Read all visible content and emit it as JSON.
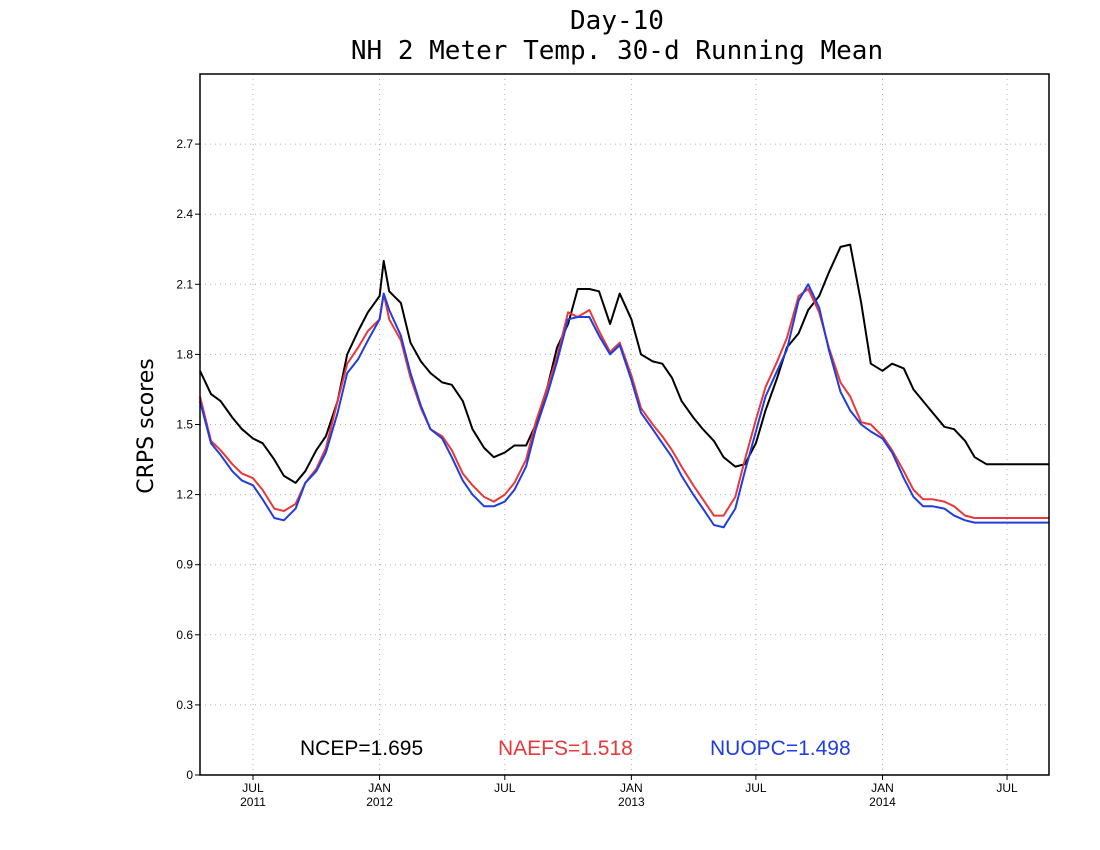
{
  "chart_data": {
    "type": "line",
    "title": "Day-10",
    "subtitle": "NH 2 Meter Temp. 30-d Running Mean",
    "ylabel": "CRPS scores",
    "xlabel": "",
    "ylim": [
      0,
      3.0
    ],
    "xlim": [
      "2011-04-15",
      "2014-08-31"
    ],
    "yticks": [
      "0",
      "0.3",
      "0.6",
      "0.9",
      "1.2",
      "1.5",
      "1.8",
      "2.1",
      "2.4",
      "2.7"
    ],
    "xticks": [
      {
        "date": "2011-07-01",
        "month": "JUL",
        "year": "2011"
      },
      {
        "date": "2012-01-01",
        "month": "JAN",
        "year": "2012"
      },
      {
        "date": "2012-07-01",
        "month": "JUL",
        "year": ""
      },
      {
        "date": "2013-01-01",
        "month": "JAN",
        "year": "2013"
      },
      {
        "date": "2013-07-01",
        "month": "JUL",
        "year": ""
      },
      {
        "date": "2014-01-01",
        "month": "JAN",
        "year": "2014"
      },
      {
        "date": "2014-07-01",
        "month": "JUL",
        "year": ""
      }
    ],
    "grid": true,
    "legend_position": "bottom-inside",
    "series": [
      {
        "name": "NCEP",
        "legend": "NCEP=1.695",
        "color": "#000000",
        "x": [
          "2011-04-15",
          "2011-05-01",
          "2011-05-15",
          "2011-06-01",
          "2011-06-15",
          "2011-07-01",
          "2011-07-15",
          "2011-08-01",
          "2011-08-15",
          "2011-09-01",
          "2011-09-15",
          "2011-10-01",
          "2011-10-15",
          "2011-11-01",
          "2011-11-15",
          "2011-12-01",
          "2011-12-15",
          "2012-01-01",
          "2012-01-07",
          "2012-01-15",
          "2012-02-01",
          "2012-02-15",
          "2012-03-01",
          "2012-03-15",
          "2012-04-01",
          "2012-04-15",
          "2012-05-01",
          "2012-05-15",
          "2012-06-01",
          "2012-06-15",
          "2012-07-01",
          "2012-07-15",
          "2012-08-01",
          "2012-08-15",
          "2012-09-01",
          "2012-09-15",
          "2012-10-01",
          "2012-10-15",
          "2012-11-01",
          "2012-11-15",
          "2012-12-01",
          "2012-12-15",
          "2013-01-01",
          "2013-01-15",
          "2013-02-01",
          "2013-02-15",
          "2013-03-01",
          "2013-03-15",
          "2013-04-01",
          "2013-04-15",
          "2013-05-01",
          "2013-05-15",
          "2013-06-01",
          "2013-06-15",
          "2013-07-01",
          "2013-07-15",
          "2013-08-01",
          "2013-08-15",
          "2013-09-01",
          "2013-09-15",
          "2013-10-01",
          "2013-10-15",
          "2013-11-01",
          "2013-11-15",
          "2013-12-01",
          "2013-12-15",
          "2014-01-01",
          "2014-01-15",
          "2014-02-01",
          "2014-02-15",
          "2014-03-01",
          "2014-03-15",
          "2014-04-01",
          "2014-04-15",
          "2014-05-01",
          "2014-05-15",
          "2014-06-01",
          "2014-06-15",
          "2014-07-01",
          "2014-07-15",
          "2014-08-01",
          "2014-08-15",
          "2014-08-31"
        ],
        "values": [
          1.73,
          1.63,
          1.6,
          1.53,
          1.48,
          1.44,
          1.42,
          1.35,
          1.28,
          1.25,
          1.3,
          1.39,
          1.45,
          1.6,
          1.8,
          1.9,
          1.98,
          2.05,
          2.2,
          2.07,
          2.02,
          1.85,
          1.77,
          1.72,
          1.68,
          1.67,
          1.6,
          1.48,
          1.4,
          1.36,
          1.38,
          1.41,
          1.41,
          1.5,
          1.66,
          1.83,
          1.93,
          2.08,
          2.08,
          2.07,
          1.93,
          2.06,
          1.95,
          1.8,
          1.77,
          1.76,
          1.7,
          1.6,
          1.53,
          1.48,
          1.43,
          1.36,
          1.32,
          1.33,
          1.42,
          1.56,
          1.7,
          1.83,
          1.89,
          1.99,
          2.05,
          2.15,
          2.26,
          2.27,
          2.02,
          1.76,
          1.73,
          1.76,
          1.74,
          1.65,
          1.6,
          1.55,
          1.49,
          1.48,
          1.43,
          1.36,
          1.33,
          1.33,
          1.33,
          1.33,
          1.33,
          1.33,
          1.33
        ]
      },
      {
        "name": "NAEFS",
        "legend": "NAEFS=1.518",
        "color": "#e8383a",
        "x": [
          "2011-04-15",
          "2011-05-01",
          "2011-05-15",
          "2011-06-01",
          "2011-06-15",
          "2011-07-01",
          "2011-07-15",
          "2011-08-01",
          "2011-08-15",
          "2011-09-01",
          "2011-09-15",
          "2011-10-01",
          "2011-10-15",
          "2011-11-01",
          "2011-11-15",
          "2011-12-01",
          "2011-12-15",
          "2012-01-01",
          "2012-01-07",
          "2012-01-15",
          "2012-02-01",
          "2012-02-15",
          "2012-03-01",
          "2012-03-15",
          "2012-04-01",
          "2012-04-15",
          "2012-05-01",
          "2012-05-15",
          "2012-06-01",
          "2012-06-15",
          "2012-07-01",
          "2012-07-15",
          "2012-08-01",
          "2012-08-15",
          "2012-09-01",
          "2012-09-15",
          "2012-10-01",
          "2012-10-15",
          "2012-11-01",
          "2012-11-15",
          "2012-12-01",
          "2012-12-15",
          "2013-01-01",
          "2013-01-15",
          "2013-02-01",
          "2013-02-15",
          "2013-03-01",
          "2013-03-15",
          "2013-04-01",
          "2013-04-15",
          "2013-05-01",
          "2013-05-15",
          "2013-06-01",
          "2013-06-15",
          "2013-07-01",
          "2013-07-15",
          "2013-08-01",
          "2013-08-15",
          "2013-09-01",
          "2013-09-15",
          "2013-10-01",
          "2013-10-15",
          "2013-11-01",
          "2013-11-15",
          "2013-12-01",
          "2013-12-15",
          "2014-01-01",
          "2014-01-15",
          "2014-02-01",
          "2014-02-15",
          "2014-03-01",
          "2014-03-15",
          "2014-04-01",
          "2014-04-15",
          "2014-05-01",
          "2014-05-15",
          "2014-06-01",
          "2014-06-15",
          "2014-07-01",
          "2014-07-15",
          "2014-08-01",
          "2014-08-15",
          "2014-08-31"
        ],
        "values": [
          1.62,
          1.43,
          1.39,
          1.33,
          1.29,
          1.27,
          1.22,
          1.14,
          1.13,
          1.16,
          1.25,
          1.31,
          1.4,
          1.6,
          1.76,
          1.83,
          1.9,
          1.95,
          2.06,
          1.95,
          1.86,
          1.7,
          1.57,
          1.48,
          1.45,
          1.39,
          1.29,
          1.24,
          1.19,
          1.17,
          1.2,
          1.25,
          1.35,
          1.51,
          1.66,
          1.79,
          1.98,
          1.96,
          1.99,
          1.9,
          1.81,
          1.85,
          1.71,
          1.57,
          1.5,
          1.45,
          1.39,
          1.32,
          1.24,
          1.18,
          1.11,
          1.11,
          1.19,
          1.35,
          1.52,
          1.66,
          1.77,
          1.87,
          2.05,
          2.08,
          1.98,
          1.83,
          1.68,
          1.62,
          1.51,
          1.5,
          1.45,
          1.39,
          1.3,
          1.22,
          1.18,
          1.18,
          1.17,
          1.15,
          1.11,
          1.1,
          1.1,
          1.1,
          1.1,
          1.1,
          1.1,
          1.1,
          1.1
        ]
      },
      {
        "name": "NUOPC",
        "legend": "NUOPC=1.498",
        "color": "#1f3de0",
        "x": [
          "2011-04-15",
          "2011-05-01",
          "2011-05-15",
          "2011-06-01",
          "2011-06-15",
          "2011-07-01",
          "2011-07-15",
          "2011-08-01",
          "2011-08-15",
          "2011-09-01",
          "2011-09-15",
          "2011-10-01",
          "2011-10-15",
          "2011-11-01",
          "2011-11-15",
          "2011-12-01",
          "2011-12-15",
          "2012-01-01",
          "2012-01-07",
          "2012-01-15",
          "2012-02-01",
          "2012-02-15",
          "2012-03-01",
          "2012-03-15",
          "2012-04-01",
          "2012-04-15",
          "2012-05-01",
          "2012-05-15",
          "2012-06-01",
          "2012-06-15",
          "2012-07-01",
          "2012-07-15",
          "2012-08-01",
          "2012-08-15",
          "2012-09-01",
          "2012-09-15",
          "2012-10-01",
          "2012-10-15",
          "2012-11-01",
          "2012-11-15",
          "2012-12-01",
          "2012-12-15",
          "2013-01-01",
          "2013-01-15",
          "2013-02-01",
          "2013-02-15",
          "2013-03-01",
          "2013-03-15",
          "2013-04-01",
          "2013-04-15",
          "2013-05-01",
          "2013-05-15",
          "2013-06-01",
          "2013-06-15",
          "2013-07-01",
          "2013-07-15",
          "2013-08-01",
          "2013-08-15",
          "2013-09-01",
          "2013-09-15",
          "2013-10-01",
          "2013-10-15",
          "2013-11-01",
          "2013-11-15",
          "2013-12-01",
          "2013-12-15",
          "2014-01-01",
          "2014-01-15",
          "2014-02-01",
          "2014-02-15",
          "2014-03-01",
          "2014-03-15",
          "2014-04-01",
          "2014-04-15",
          "2014-05-01",
          "2014-05-15",
          "2014-06-01",
          "2014-06-15",
          "2014-07-01",
          "2014-07-15",
          "2014-08-01",
          "2014-08-15",
          "2014-08-31"
        ],
        "values": [
          1.6,
          1.42,
          1.37,
          1.3,
          1.26,
          1.24,
          1.18,
          1.1,
          1.09,
          1.14,
          1.25,
          1.3,
          1.38,
          1.55,
          1.72,
          1.78,
          1.86,
          1.95,
          2.06,
          1.99,
          1.88,
          1.72,
          1.58,
          1.48,
          1.44,
          1.36,
          1.26,
          1.2,
          1.15,
          1.15,
          1.17,
          1.22,
          1.32,
          1.48,
          1.63,
          1.77,
          1.95,
          1.96,
          1.96,
          1.88,
          1.8,
          1.84,
          1.69,
          1.55,
          1.48,
          1.42,
          1.36,
          1.28,
          1.2,
          1.14,
          1.07,
          1.06,
          1.14,
          1.3,
          1.47,
          1.62,
          1.73,
          1.82,
          2.03,
          2.1,
          2.0,
          1.82,
          1.64,
          1.56,
          1.5,
          1.47,
          1.44,
          1.38,
          1.27,
          1.19,
          1.15,
          1.15,
          1.14,
          1.11,
          1.09,
          1.08,
          1.08,
          1.08,
          1.08,
          1.08,
          1.08,
          1.08,
          1.08
        ]
      }
    ]
  }
}
